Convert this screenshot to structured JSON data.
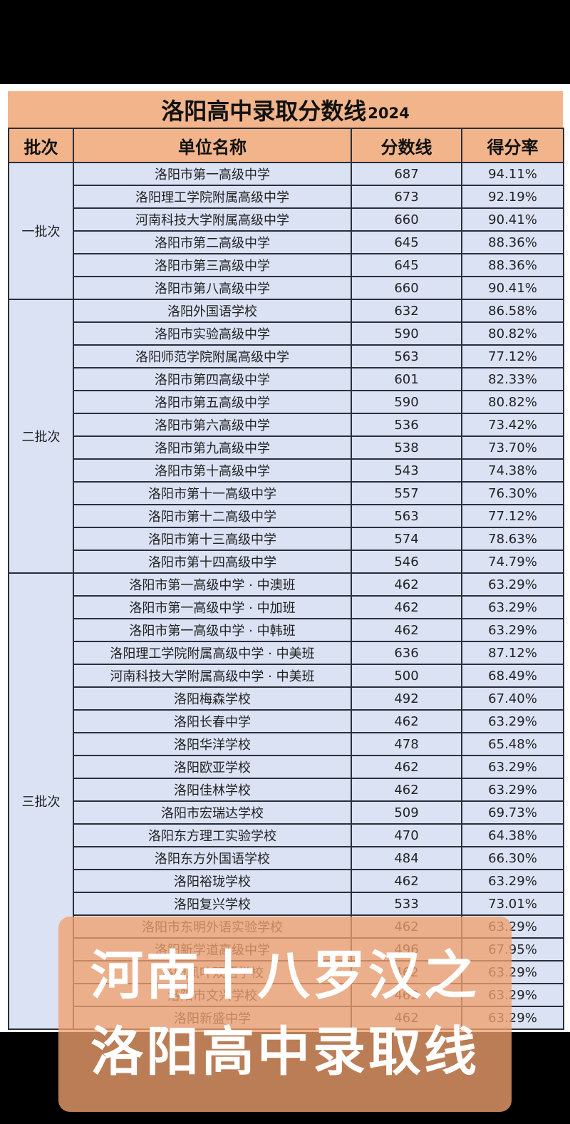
{
  "title": {
    "main": "洛阳高中录取分数线",
    "year": "2024"
  },
  "colors": {
    "header_bg": "#f2b48a",
    "cell_bg": "#dbe2f4",
    "border": "#2a2f3a",
    "overlay_bg": "#f0a06e"
  },
  "columns": [
    "批次",
    "单位名称",
    "分数线",
    "得分率"
  ],
  "batches": [
    {
      "label": "一批次",
      "rows": [
        {
          "name": "洛阳市第一高级中学",
          "score": "687",
          "rate": "94.11%"
        },
        {
          "name": "洛阳理工学院附属高级中学",
          "score": "673",
          "rate": "92.19%"
        },
        {
          "name": "河南科技大学附属高级中学",
          "score": "660",
          "rate": "90.41%"
        },
        {
          "name": "洛阳市第二高级中学",
          "score": "645",
          "rate": "88.36%"
        },
        {
          "name": "洛阳市第三高级中学",
          "score": "645",
          "rate": "88.36%"
        },
        {
          "name": "洛阳市第八高级中学",
          "score": "660",
          "rate": "90.41%"
        }
      ]
    },
    {
      "label": "二批次",
      "rows": [
        {
          "name": "洛阳外国语学校",
          "score": "632",
          "rate": "86.58%"
        },
        {
          "name": "洛阳市实验高级中学",
          "score": "590",
          "rate": "80.82%"
        },
        {
          "name": "洛阳师范学院附属高级中学",
          "score": "563",
          "rate": "77.12%"
        },
        {
          "name": "洛阳市第四高级中学",
          "score": "601",
          "rate": "82.33%"
        },
        {
          "name": "洛阳市第五高级中学",
          "score": "590",
          "rate": "80.82%"
        },
        {
          "name": "洛阳市第六高级中学",
          "score": "536",
          "rate": "73.42%"
        },
        {
          "name": "洛阳市第九高级中学",
          "score": "538",
          "rate": "73.70%"
        },
        {
          "name": "洛阳市第十高级中学",
          "score": "543",
          "rate": "74.38%"
        },
        {
          "name": "洛阳市第十一高级中学",
          "score": "557",
          "rate": "76.30%"
        },
        {
          "name": "洛阳市第十二高级中学",
          "score": "563",
          "rate": "77.12%"
        },
        {
          "name": "洛阳市第十三高级中学",
          "score": "574",
          "rate": "78.63%"
        },
        {
          "name": "洛阳市第十四高级中学",
          "score": "546",
          "rate": "74.79%"
        }
      ]
    },
    {
      "label": "三批次",
      "rows": [
        {
          "name": "洛阳市第一高级中学 · 中澳班",
          "score": "462",
          "rate": "63.29%"
        },
        {
          "name": "洛阳市第一高级中学 · 中加班",
          "score": "462",
          "rate": "63.29%"
        },
        {
          "name": "洛阳市第一高级中学 · 中韩班",
          "score": "462",
          "rate": "63.29%"
        },
        {
          "name": "洛阳理工学院附属高级中学 · 中美班",
          "score": "636",
          "rate": "87.12%"
        },
        {
          "name": "河南科技大学附属高级中学 · 中美班",
          "score": "500",
          "rate": "68.49%"
        },
        {
          "name": "洛阳梅森学校",
          "score": "492",
          "rate": "67.40%"
        },
        {
          "name": "洛阳长春中学",
          "score": "462",
          "rate": "63.29%"
        },
        {
          "name": "洛阳华洋学校",
          "score": "478",
          "rate": "65.48%"
        },
        {
          "name": "洛阳欧亚学校",
          "score": "462",
          "rate": "63.29%"
        },
        {
          "name": "洛阳佳林学校",
          "score": "462",
          "rate": "63.29%"
        },
        {
          "name": "洛阳市宏瑞达学校",
          "score": "509",
          "rate": "69.73%"
        },
        {
          "name": "洛阳东方理工实验学校",
          "score": "470",
          "rate": "64.38%"
        },
        {
          "name": "洛阳东方外国语学校",
          "score": "484",
          "rate": "66.30%"
        },
        {
          "name": "洛阳裕珑学校",
          "score": "462",
          "rate": "63.29%"
        },
        {
          "name": "洛阳复兴学校",
          "score": "533",
          "rate": "73.01%"
        },
        {
          "name": "洛阳市东明外语实验学校",
          "score": "462",
          "rate": "63.29%"
        },
        {
          "name": "洛阳新学道高级中学",
          "score": "496",
          "rate": "67.95%"
        },
        {
          "name": "洛阳凤叶双语学校",
          "score": "462",
          "rate": "63.29%"
        },
        {
          "name": "洛阳市文兴学校",
          "score": "462",
          "rate": "63.29%"
        },
        {
          "name": "洛阳新盛中学",
          "score": "462",
          "rate": "63.29%"
        }
      ]
    }
  ],
  "overlay": {
    "line1": "河南十八罗汉之",
    "line2": "洛阳高中录取线"
  }
}
